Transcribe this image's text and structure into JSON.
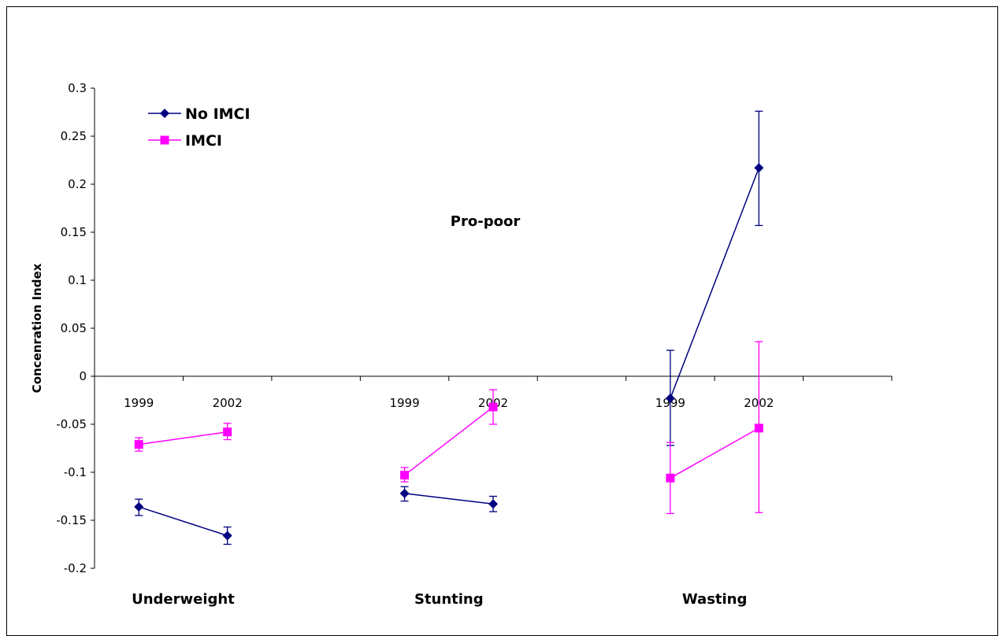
{
  "chart_data": {
    "type": "line",
    "ylabel": "Concenration Index",
    "ylim": [
      -0.2,
      0.3
    ],
    "y_ticks": [
      0.3,
      0.25,
      0.2,
      0.15,
      0.1,
      0.05,
      0,
      -0.05,
      -0.1,
      -0.15,
      -0.2
    ],
    "y_tick_labels": [
      "0.3",
      "0.25",
      "0.2",
      "0.15",
      "0.1",
      "0.05",
      "0",
      "-0.05",
      "-0.1",
      "-0.15",
      "-0.2"
    ],
    "annotation": "Pro-poor",
    "groups": [
      {
        "label": "Underweight",
        "years": [
          "1999",
          "2002"
        ]
      },
      {
        "label": "Stunting",
        "years": [
          "1999",
          "2002"
        ]
      },
      {
        "label": "Wasting",
        "years": [
          "1999",
          "2002"
        ]
      }
    ],
    "legend_position": "top-left",
    "series": [
      {
        "name": "No IMCI",
        "color": "#000080",
        "marker": "diamond",
        "groups": [
          {
            "values": [
              -0.136,
              -0.166
            ],
            "error_low": [
              -0.145,
              -0.175
            ],
            "error_high": [
              -0.128,
              -0.157
            ]
          },
          {
            "values": [
              -0.122,
              -0.133
            ],
            "error_low": [
              -0.13,
              -0.141
            ],
            "error_high": [
              -0.115,
              -0.125
            ]
          },
          {
            "values": [
              -0.023,
              0.217
            ],
            "error_low": [
              -0.072,
              0.157
            ],
            "error_high": [
              0.027,
              0.276
            ]
          }
        ]
      },
      {
        "name": "IMCI",
        "color": "#ff00ff",
        "marker": "square",
        "groups": [
          {
            "values": [
              -0.071,
              -0.058
            ],
            "error_low": [
              -0.078,
              -0.066
            ],
            "error_high": [
              -0.064,
              -0.049
            ]
          },
          {
            "values": [
              -0.103,
              -0.032
            ],
            "error_low": [
              -0.11,
              -0.05
            ],
            "error_high": [
              -0.095,
              -0.014
            ]
          },
          {
            "values": [
              -0.106,
              -0.054
            ],
            "error_low": [
              -0.143,
              -0.142
            ],
            "error_high": [
              -0.069,
              0.036
            ]
          }
        ]
      }
    ]
  }
}
